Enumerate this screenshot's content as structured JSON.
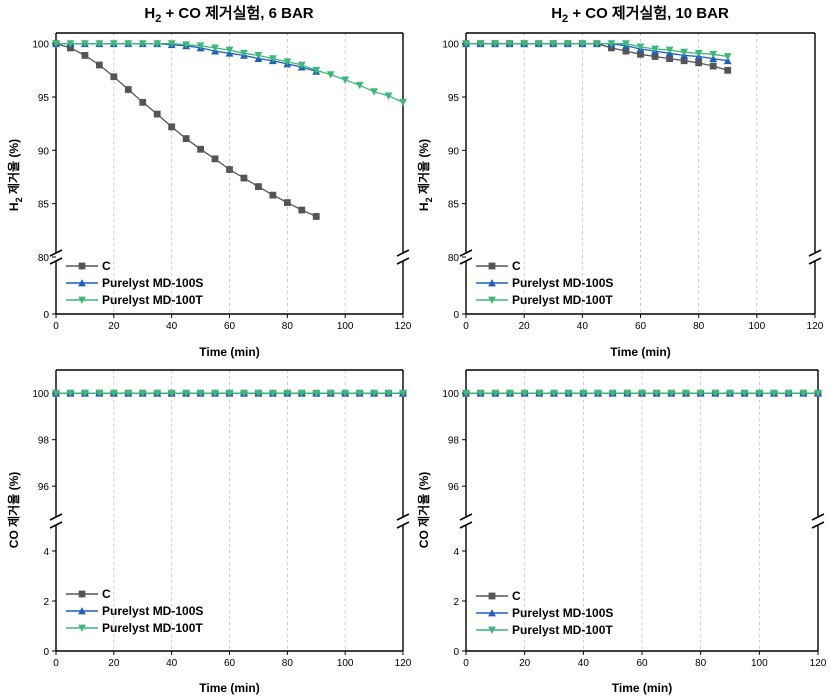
{
  "chart_data": [
    {
      "type": "line",
      "title_main": "H",
      "title_sub": "2",
      "title_rest": " + CO 제거실험, 6 BAR",
      "xlabel": "Time (min)",
      "ylabel_main": "H",
      "ylabel_sub": "2",
      "ylabel_rest": " 제거율 (%)",
      "xlim": [
        0,
        120
      ],
      "x_ticks": [
        "0",
        "20",
        "40",
        "60",
        "80",
        "100",
        "120"
      ],
      "y_upper_range": [
        80,
        101
      ],
      "y_upper_ticks": [
        "80",
        "85",
        "90",
        "95",
        "100"
      ],
      "y_lower_ticks": [
        "0"
      ],
      "axis_break": true,
      "grid": "dashed vertical",
      "legend_position": "lower-left",
      "series": [
        {
          "name": "C",
          "color": "#555555",
          "marker": "square",
          "x": [
            0,
            5,
            10,
            15,
            20,
            25,
            30,
            35,
            40,
            45,
            50,
            55,
            60,
            65,
            70,
            75,
            80,
            85,
            90
          ],
          "y": [
            100,
            99.6,
            98.9,
            98.0,
            96.9,
            95.7,
            94.5,
            93.4,
            92.2,
            91.1,
            90.1,
            89.2,
            88.2,
            87.4,
            86.6,
            85.8,
            85.1,
            84.4,
            83.8
          ]
        },
        {
          "name": "Purelyst MD-100S",
          "color": "#1f5fbf",
          "marker": "triangle-up",
          "x": [
            0,
            5,
            10,
            15,
            20,
            25,
            30,
            35,
            40,
            45,
            50,
            55,
            60,
            65,
            70,
            75,
            80,
            85,
            90
          ],
          "y": [
            100,
            100,
            100,
            100,
            100,
            100,
            100,
            100,
            99.9,
            99.8,
            99.6,
            99.3,
            99.1,
            98.9,
            98.6,
            98.4,
            98.1,
            97.8,
            97.4
          ]
        },
        {
          "name": "Purelyst MD-100T",
          "color": "#3cb878",
          "marker": "triangle-down",
          "x": [
            0,
            5,
            10,
            15,
            20,
            25,
            30,
            35,
            40,
            45,
            50,
            55,
            60,
            65,
            70,
            75,
            80,
            85,
            90,
            95,
            100,
            105,
            110,
            115,
            120
          ],
          "y": [
            100,
            100,
            100,
            100,
            100,
            100,
            100,
            100,
            100,
            99.9,
            99.8,
            99.6,
            99.4,
            99.1,
            98.9,
            98.6,
            98.3,
            98.0,
            97.5,
            97.1,
            96.6,
            96.1,
            95.5,
            95.1,
            94.5
          ]
        }
      ]
    },
    {
      "type": "line",
      "title_main": "H",
      "title_sub": "2",
      "title_rest": " + CO 제거실험, 10 BAR",
      "xlabel": "Time (min)",
      "ylabel_main": "H",
      "ylabel_sub": "2",
      "ylabel_rest": " 제거율 (%)",
      "xlim": [
        0,
        120
      ],
      "x_ticks": [
        "0",
        "20",
        "40",
        "60",
        "80",
        "100",
        "120"
      ],
      "y_upper_range": [
        80,
        101
      ],
      "y_upper_ticks": [
        "80",
        "85",
        "90",
        "95",
        "100"
      ],
      "y_lower_ticks": [
        "0"
      ],
      "axis_break": true,
      "grid": "dashed vertical",
      "legend_position": "lower-left",
      "series": [
        {
          "name": "C",
          "color": "#555555",
          "marker": "square",
          "x": [
            0,
            5,
            10,
            15,
            20,
            25,
            30,
            35,
            40,
            45,
            50,
            55,
            60,
            65,
            70,
            75,
            80,
            85,
            90
          ],
          "y": [
            100,
            100,
            100,
            100,
            100,
            100,
            100,
            100,
            100,
            100,
            99.6,
            99.3,
            99.0,
            98.8,
            98.6,
            98.4,
            98.2,
            97.9,
            97.5
          ]
        },
        {
          "name": "Purelyst MD-100S",
          "color": "#1f5fbf",
          "marker": "triangle-up",
          "x": [
            0,
            5,
            10,
            15,
            20,
            25,
            30,
            35,
            40,
            45,
            50,
            55,
            60,
            65,
            70,
            75,
            80,
            85,
            90
          ],
          "y": [
            100,
            100,
            100,
            100,
            100,
            100,
            100,
            100,
            100,
            100,
            100,
            99.8,
            99.5,
            99.3,
            99.1,
            98.9,
            98.8,
            98.6,
            98.4
          ]
        },
        {
          "name": "Purelyst MD-100T",
          "color": "#3cb878",
          "marker": "triangle-down",
          "x": [
            0,
            5,
            10,
            15,
            20,
            25,
            30,
            35,
            40,
            45,
            50,
            55,
            60,
            65,
            70,
            75,
            80,
            85,
            90
          ],
          "y": [
            100,
            100,
            100,
            100,
            100,
            100,
            100,
            100,
            100,
            100,
            100,
            100,
            99.7,
            99.5,
            99.4,
            99.2,
            99.1,
            99.0,
            98.8
          ]
        }
      ]
    },
    {
      "type": "line",
      "title_main": "",
      "title_sub": "",
      "title_rest": "",
      "xlabel": "Time (min)",
      "ylabel_main": "CO 제거율 (%)",
      "ylabel_sub": "",
      "ylabel_rest": "",
      "xlim": [
        0,
        120
      ],
      "x_ticks": [
        "0",
        "20",
        "40",
        "60",
        "80",
        "100",
        "120"
      ],
      "y_upper_range": [
        94.5,
        101
      ],
      "y_upper_ticks": [
        "96",
        "98",
        "100"
      ],
      "y_lower_ticks": [
        "0",
        "2",
        "4"
      ],
      "axis_break": true,
      "grid": "dashed vertical",
      "legend_position": "lower-left",
      "series": [
        {
          "name": "C",
          "color": "#555555",
          "marker": "square",
          "x": [
            0,
            5,
            10,
            15,
            20,
            25,
            30,
            35,
            40,
            45,
            50,
            55,
            60,
            65,
            70,
            75,
            80,
            85,
            90,
            95,
            100,
            105,
            110,
            115,
            120
          ],
          "y": [
            100,
            100,
            100,
            100,
            100,
            100,
            100,
            100,
            100,
            100,
            100,
            100,
            100,
            100,
            100,
            100,
            100,
            100,
            100,
            100,
            100,
            100,
            100,
            100,
            100
          ]
        },
        {
          "name": "Purelyst MD-100S",
          "color": "#1f5fbf",
          "marker": "triangle-up",
          "x": [
            0,
            5,
            10,
            15,
            20,
            25,
            30,
            35,
            40,
            45,
            50,
            55,
            60,
            65,
            70,
            75,
            80,
            85,
            90,
            95,
            100,
            105,
            110,
            115,
            120
          ],
          "y": [
            100,
            100,
            100,
            100,
            100,
            100,
            100,
            100,
            100,
            100,
            100,
            100,
            100,
            100,
            100,
            100,
            100,
            100,
            100,
            100,
            100,
            100,
            100,
            100,
            100
          ]
        },
        {
          "name": "Purelyst MD-100T",
          "color": "#3cb878",
          "marker": "triangle-down",
          "x": [
            0,
            5,
            10,
            15,
            20,
            25,
            30,
            35,
            40,
            45,
            50,
            55,
            60,
            65,
            70,
            75,
            80,
            85,
            90,
            95,
            100,
            105,
            110,
            115,
            120
          ],
          "y": [
            100,
            100,
            100,
            100,
            100,
            100,
            100,
            100,
            100,
            100,
            100,
            100,
            100,
            100,
            100,
            100,
            100,
            100,
            100,
            100,
            100,
            100,
            100,
            100,
            100
          ]
        }
      ]
    },
    {
      "type": "line",
      "title_main": "",
      "title_sub": "",
      "title_rest": "",
      "xlabel": "Time (min)",
      "ylabel_main": "CO 제거율 (%)",
      "ylabel_sub": "",
      "ylabel_rest": "",
      "xlim": [
        0,
        120
      ],
      "x_ticks": [
        "0",
        "20",
        "40",
        "60",
        "80",
        "100",
        "120"
      ],
      "y_upper_range": [
        94.5,
        101
      ],
      "y_upper_ticks": [
        "96",
        "98",
        "100"
      ],
      "y_lower_ticks": [
        "0",
        "2",
        "4"
      ],
      "axis_break": true,
      "grid": "dashed vertical",
      "legend_position": "lower-left",
      "series": [
        {
          "name": "C",
          "color": "#555555",
          "marker": "square",
          "x": [
            0,
            5,
            10,
            15,
            20,
            25,
            30,
            35,
            40,
            45,
            50,
            55,
            60,
            65,
            70,
            75,
            80,
            85,
            90,
            95,
            100,
            105,
            110,
            115,
            120
          ],
          "y": [
            100,
            100,
            100,
            100,
            100,
            100,
            100,
            100,
            100,
            100,
            100,
            100,
            100,
            100,
            100,
            100,
            100,
            100,
            100,
            100,
            100,
            100,
            100,
            100,
            100
          ]
        },
        {
          "name": "Purelyst MD-100S",
          "color": "#1f5fbf",
          "marker": "triangle-up",
          "x": [
            0,
            5,
            10,
            15,
            20,
            25,
            30,
            35,
            40,
            45,
            50,
            55,
            60,
            65,
            70,
            75,
            80,
            85,
            90,
            95,
            100,
            105,
            110,
            115,
            120
          ],
          "y": [
            100,
            100,
            100,
            100,
            100,
            100,
            100,
            100,
            100,
            100,
            100,
            100,
            100,
            100,
            100,
            100,
            100,
            100,
            100,
            100,
            100,
            100,
            100,
            100,
            100
          ]
        },
        {
          "name": "Purelyst MD-100T",
          "color": "#3cb878",
          "marker": "triangle-down",
          "x": [
            0,
            5,
            10,
            15,
            20,
            25,
            30,
            35,
            40,
            45,
            50,
            55,
            60,
            65,
            70,
            75,
            80,
            85,
            90,
            95,
            100,
            105,
            110,
            115,
            120
          ],
          "y": [
            100,
            100,
            100,
            100,
            100,
            100,
            100,
            100,
            100,
            100,
            100,
            100,
            100,
            100,
            100,
            100,
            100,
            100,
            100,
            100,
            100,
            100,
            100,
            100,
            100
          ]
        }
      ]
    }
  ]
}
